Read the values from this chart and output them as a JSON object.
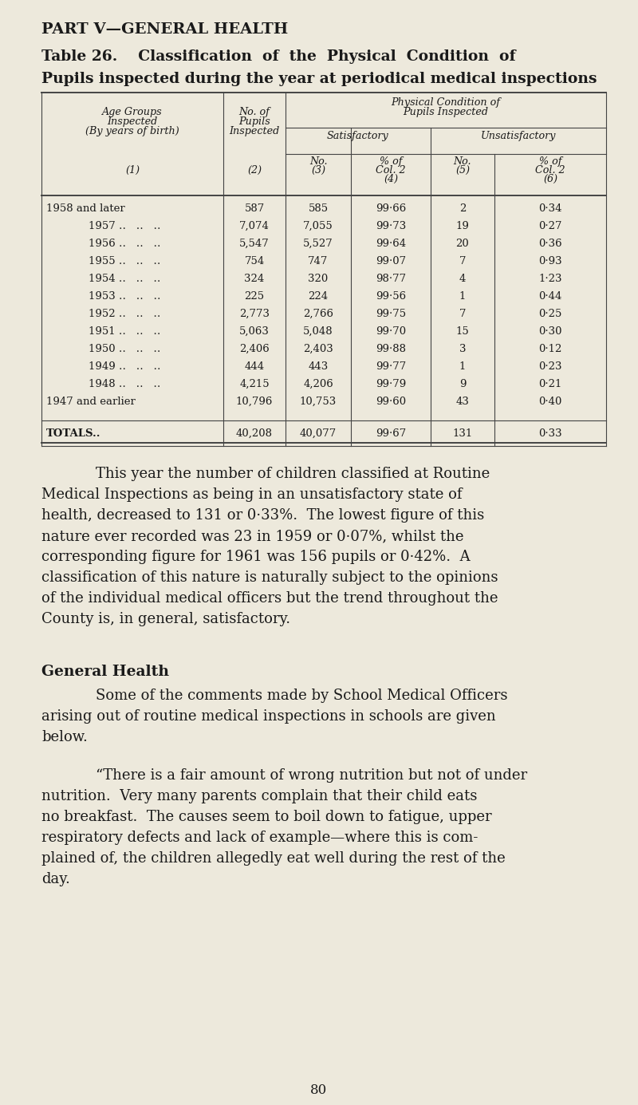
{
  "bg_color": "#ede9dc",
  "text_color": "#1a1a1a",
  "page_title": "PART V—GENERAL HEALTH",
  "table_title_line1": "Table 26.    Classification  of  the  Physical  Condition  of",
  "table_title_line2": "Pupils inspected during the year at periodical medical inspections",
  "rows": [
    [
      "1958 and later",
      "587",
      "585",
      "99·66",
      "2",
      "0·34"
    ],
    [
      "1957",
      "7,074",
      "7,055",
      "99·73",
      "19",
      "0·27"
    ],
    [
      "1956",
      "5,547",
      "5,527",
      "99·64",
      "20",
      "0·36"
    ],
    [
      "1955",
      "754",
      "747",
      "99·07",
      "7",
      "0·93"
    ],
    [
      "1954",
      "324",
      "320",
      "98·77",
      "4",
      "1·23"
    ],
    [
      "1953",
      "225",
      "224",
      "99·56",
      "1",
      "0·44"
    ],
    [
      "1952",
      "2,773",
      "2,766",
      "99·75",
      "7",
      "0·25"
    ],
    [
      "1951",
      "5,063",
      "5,048",
      "99·70",
      "15",
      "0·30"
    ],
    [
      "1950",
      "2,406",
      "2,403",
      "99·88",
      "3",
      "0·12"
    ],
    [
      "1949",
      "444",
      "443",
      "99·77",
      "1",
      "0·23"
    ],
    [
      "1948",
      "4,215",
      "4,206",
      "99·79",
      "9",
      "0·21"
    ],
    [
      "1947 and earlier",
      "10,796",
      "10,753",
      "99·60",
      "43",
      "0·40"
    ]
  ],
  "totals_row": [
    "TOTALS..",
    "40,208",
    "40,077",
    "99·67",
    "131",
    "0·33"
  ],
  "paragraph1": "This year the number of children classified at Routine Medical Inspections as being in an unsatisfactory state of health, decreased to 131 or 0·33%.  The lowest figure of this nature ever recorded was 23 in 1959 or 0·07%, whilst the corresponding figure for 1961 was 156 pupils or 0·42%.  A classification of this nature is naturally subject to the opinions of the individual medical officers but the trend throughout the County is, in general, satisfactory.",
  "general_health_header": "General Health",
  "paragraph2": "Some of the comments made by School Medical Officers arising out of routine medical inspections in schools are given below.",
  "paragraph3": "“There is a fair amount of wrong nutrition but not of under nutrition.  Very many parents complain that their child eats no breakfast.  The causes seem to boil down to fatigue, upper respiratory defects and lack of example—where this is complained of, the children allegedly eat well during the rest of the day.",
  "page_number": "80"
}
